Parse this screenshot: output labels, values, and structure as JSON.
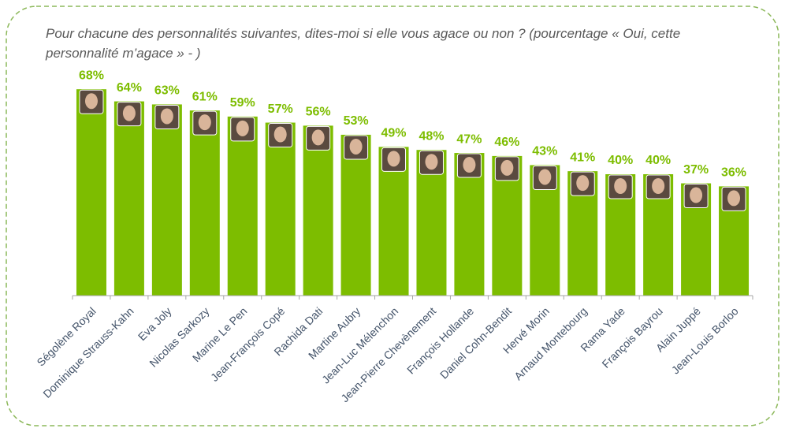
{
  "chart_data": {
    "type": "bar",
    "title": "Pour chacune des personnalités suivantes, dites-moi si elle vous agace ou non ? (pourcentage « Oui, cette personnalité m’agace » - )",
    "categories": [
      "Ségolène Royal",
      "Dominique Strauss-Kahn",
      "Eva Joly",
      "Nicolas Sarkozy",
      "Marine Le Pen",
      "Jean-François Copé",
      "Rachida Dati",
      "Martine Aubry",
      "Jean-Luc Mélenchon",
      "Jean-Pierre Chevènement",
      "François Hollande",
      "Daniel Cohn-Bendit",
      "Hervé Morin",
      "Arnaud Montebourg",
      "Rama Yade",
      "François Bayrou",
      "Alain Juppé",
      "Jean-Louis Borloo"
    ],
    "values": [
      68,
      64,
      63,
      61,
      59,
      57,
      56,
      53,
      49,
      48,
      47,
      46,
      43,
      41,
      40,
      40,
      37,
      36
    ],
    "value_labels": [
      "68%",
      "64%",
      "63%",
      "61%",
      "59%",
      "57%",
      "56%",
      "53%",
      "49%",
      "48%",
      "47%",
      "46%",
      "43%",
      "41%",
      "40%",
      "40%",
      "37%",
      "36%"
    ],
    "color": "#7dbd00"
  }
}
